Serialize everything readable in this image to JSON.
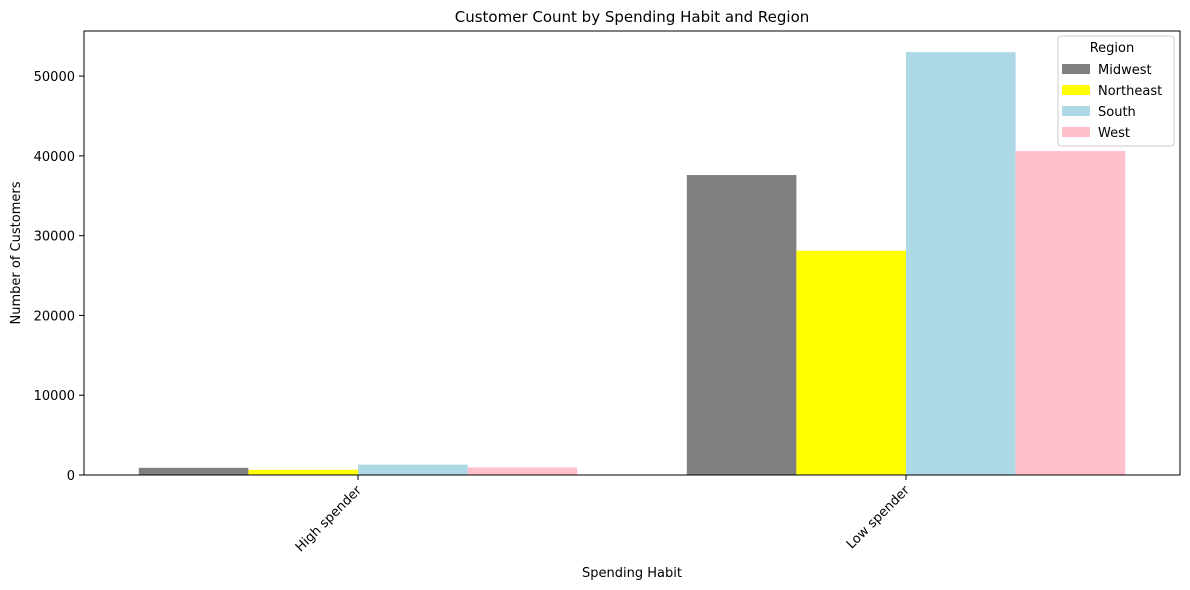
{
  "chart_data": {
    "type": "bar",
    "title": "Customer Count by Spending Habit and Region",
    "xlabel": "Spending Habit",
    "ylabel": "Number of Customers",
    "categories": [
      "High spender",
      "Low spender"
    ],
    "series": [
      {
        "name": "Midwest",
        "color": "#808080",
        "values": [
          900,
          37600
        ]
      },
      {
        "name": "Northeast",
        "color": "#ffff00",
        "values": [
          650,
          28100
        ]
      },
      {
        "name": "South",
        "color": "#add8e6",
        "values": [
          1300,
          53000
        ]
      },
      {
        "name": "West",
        "color": "#ffc0cb",
        "values": [
          950,
          40600
        ]
      }
    ],
    "ylim": [
      0,
      55650
    ],
    "yticks": [
      0,
      10000,
      20000,
      30000,
      40000,
      50000
    ],
    "legend": {
      "title": "Region",
      "placement": "top-right"
    },
    "grid": false
  }
}
